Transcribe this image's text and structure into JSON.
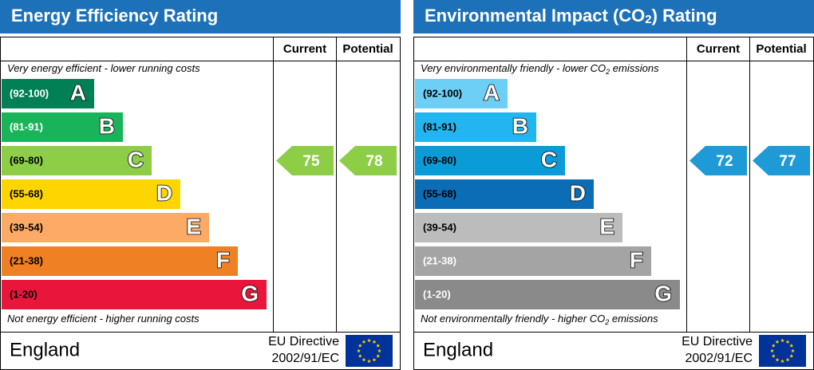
{
  "panels": [
    {
      "title": [
        "Energy Efficiency Rating"
      ],
      "columns": [
        "Current",
        "Potential"
      ],
      "top_note": [
        "Very energy efficient - lower running costs"
      ],
      "bottom_note": [
        "Not energy efficient - higher running costs"
      ],
      "bands": [
        {
          "range": "(92-100)",
          "letter": "A",
          "color": "#008054"
        },
        {
          "range": "(81-91)",
          "letter": "B",
          "color": "#19b459"
        },
        {
          "range": "(69-80)",
          "letter": "C",
          "color": "#8dce46"
        },
        {
          "range": "(55-68)",
          "letter": "D",
          "color": "#ffd500"
        },
        {
          "range": "(39-54)",
          "letter": "E",
          "color": "#fcaa65"
        },
        {
          "range": "(21-38)",
          "letter": "F",
          "color": "#ef8023"
        },
        {
          "range": "(1-20)",
          "letter": "G",
          "color": "#e9153b"
        }
      ],
      "current": 75,
      "potential": 78,
      "arrow_color": "#8dce46",
      "country": "England",
      "directive": [
        "EU Directive",
        "2002/91/EC"
      ]
    },
    {
      "title": [
        "Environmental Impact (CO",
        "2",
        ") Rating"
      ],
      "columns": [
        "Current",
        "Potential"
      ],
      "top_note": [
        "Very environmentally friendly - lower CO",
        "2",
        " emissions"
      ],
      "bottom_note": [
        "Not environmentally friendly - higher CO",
        "2",
        " emissions"
      ],
      "bands": [
        {
          "range": "(92-100)",
          "letter": "A",
          "color": "#6dcff6"
        },
        {
          "range": "(81-91)",
          "letter": "B",
          "color": "#22b5ef"
        },
        {
          "range": "(69-80)",
          "letter": "C",
          "color": "#0b9bd9"
        },
        {
          "range": "(55-68)",
          "letter": "D",
          "color": "#0a6db5"
        },
        {
          "range": "(39-54)",
          "letter": "E",
          "color": "#bcbcbc"
        },
        {
          "range": "(21-38)",
          "letter": "F",
          "color": "#a4a4a4"
        },
        {
          "range": "(1-20)",
          "letter": "G",
          "color": "#8a8a8a"
        }
      ],
      "current": 72,
      "potential": 77,
      "arrow_color": "#1e9ad6",
      "country": "England",
      "directive": [
        "EU Directive",
        "2002/91/EC"
      ]
    }
  ]
}
